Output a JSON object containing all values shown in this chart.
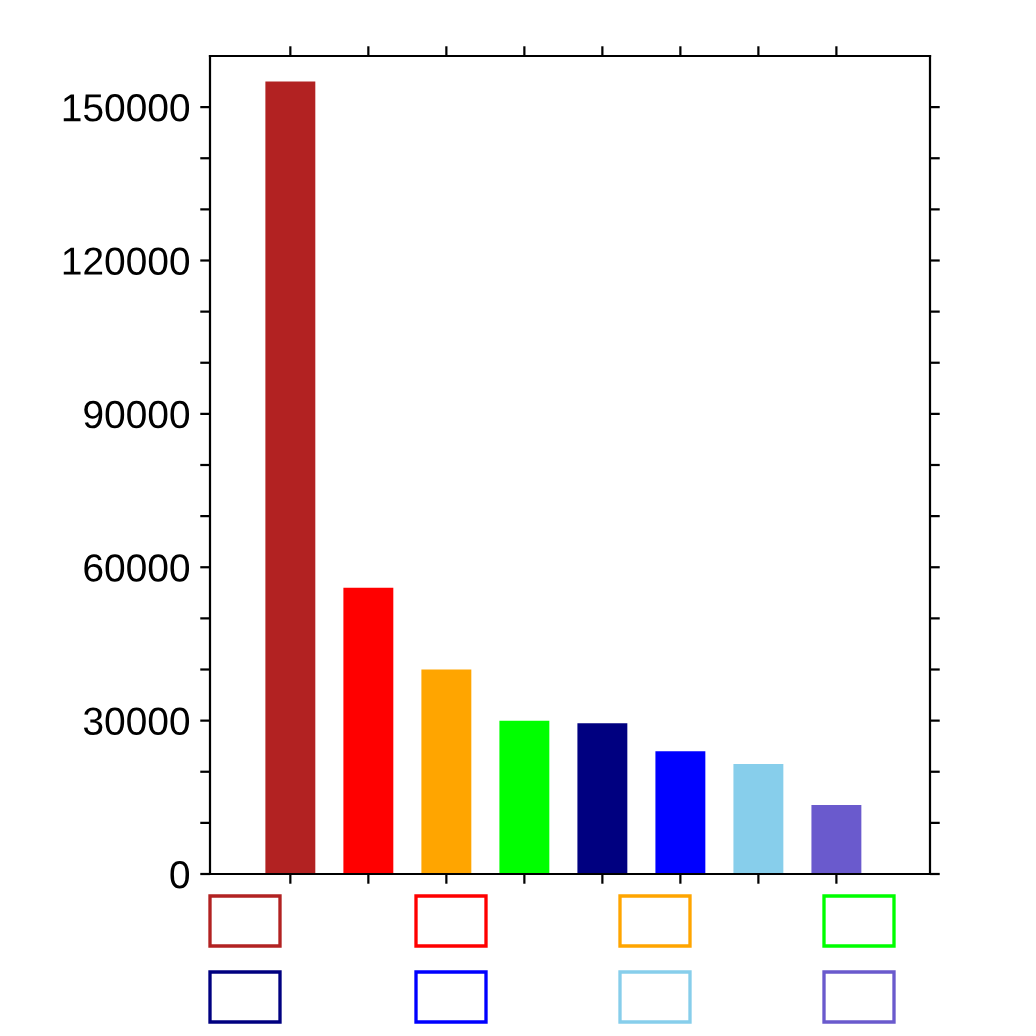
{
  "chart_data": {
    "type": "bar",
    "categories": [
      null,
      null,
      null,
      null,
      null,
      null,
      null,
      null
    ],
    "values": [
      155000,
      56000,
      40000,
      30000,
      29500,
      24000,
      21500,
      13500
    ],
    "colors": [
      "#b22222",
      "#ff0000",
      "#ffa500",
      "#00ff00",
      "#000080",
      "#0000ff",
      "#87ceeb",
      "#6a5acd"
    ],
    "ylim": [
      0,
      160000
    ],
    "yticks": [
      0,
      {
        "value": 10000,
        "label": null
      },
      {
        "value": 20000,
        "label": null
      },
      30000,
      {
        "value": 40000,
        "label": null
      },
      {
        "value": 50000,
        "label": null
      },
      60000,
      {
        "value": 70000,
        "label": null
      },
      {
        "value": 80000,
        "label": null
      },
      90000,
      {
        "value": 100000,
        "label": null
      },
      {
        "value": 110000,
        "label": null
      },
      120000,
      {
        "value": 130000,
        "label": null
      },
      {
        "value": 140000,
        "label": null
      },
      150000
    ],
    "grid": false,
    "tick_labels": "y"
  }
}
